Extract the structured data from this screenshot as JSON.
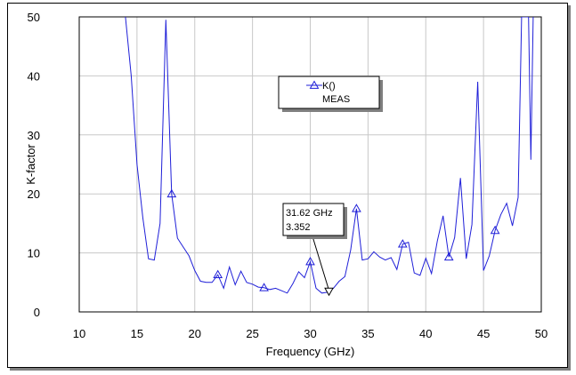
{
  "chart_data": {
    "type": "line",
    "xlabel": "Frequency (GHz)",
    "ylabel": "K-factor",
    "xlim": [
      10,
      50
    ],
    "ylim": [
      0,
      50
    ],
    "xticks": [
      10,
      15,
      20,
      25,
      30,
      35,
      40,
      45,
      50
    ],
    "yticks": [
      0,
      10,
      20,
      30,
      40,
      50
    ],
    "grid": true,
    "legend": {
      "placement": "top-center",
      "line1": "K()",
      "line2": "MEAS"
    },
    "series": [
      {
        "name": "K()",
        "color": "#1f1fd8",
        "marker": "triangle",
        "x": [
          14.0,
          14.5,
          15.0,
          15.5,
          16.0,
          16.5,
          17.0,
          17.5,
          18.0,
          18.5,
          19.0,
          19.5,
          20.0,
          20.5,
          21.0,
          21.5,
          22.0,
          22.5,
          23.0,
          23.5,
          24.0,
          24.5,
          25.0,
          25.5,
          26.0,
          26.5,
          27.0,
          27.5,
          28.0,
          28.5,
          29.0,
          29.5,
          30.0,
          30.5,
          31.0,
          31.62,
          32.0,
          32.5,
          33.0,
          33.5,
          34.0,
          34.5,
          35.0,
          35.5,
          36.0,
          36.5,
          37.0,
          37.5,
          38.0,
          38.5,
          39.0,
          39.5,
          40.0,
          40.5,
          41.0,
          41.5,
          42.0,
          42.5,
          43.0,
          43.5,
          44.0,
          44.5,
          45.0,
          45.5,
          46.0,
          46.5,
          47.0,
          47.5,
          48.0,
          48.3,
          48.6,
          48.9,
          49.1,
          49.3
        ],
        "y": [
          50,
          40,
          25,
          16,
          9,
          8.8,
          15,
          49.5,
          20,
          12.5,
          11,
          9.5,
          7,
          5.2,
          5.0,
          5.0,
          6.3,
          4,
          7.6,
          4.6,
          6.9,
          5,
          4.7,
          4.2,
          4.1,
          3.8,
          4.0,
          3.6,
          3.2,
          4.8,
          6.8,
          5.8,
          8.5,
          4,
          3.2,
          3.352,
          4,
          5.2,
          6,
          10.5,
          17.5,
          8.8,
          9,
          10.2,
          9.3,
          8.8,
          9.2,
          7.2,
          11.5,
          11.8,
          6.6,
          6.2,
          9.1,
          6.5,
          12,
          16.3,
          9.3,
          12.6,
          22.7,
          9,
          14.8,
          39,
          7,
          9.5,
          13.8,
          16.5,
          18.4,
          14.6,
          19.4,
          50,
          50,
          50,
          25.8,
          50
        ],
        "markers_x": [
          18.0,
          22.0,
          26.0,
          30.0,
          34.0,
          38.0,
          42.0,
          46.0
        ]
      }
    ],
    "annotation": {
      "x": 31.62,
      "y": 3.352,
      "line1": "31.62 GHz",
      "line2": "3.352"
    }
  }
}
